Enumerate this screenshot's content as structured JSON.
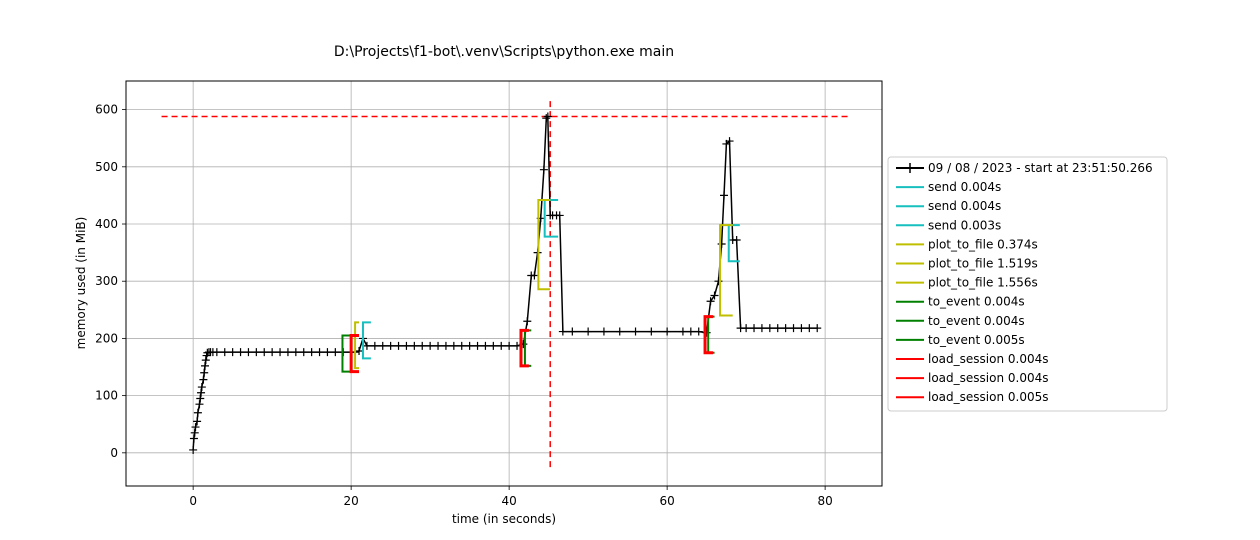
{
  "chart_data": {
    "type": "line",
    "title": "D:\\Projects\\f1-bot\\.venv\\Scripts\\python.exe main",
    "xlabel": "time (in seconds)",
    "ylabel": "memory used (in MiB)",
    "xlim": [
      -8.5,
      87.2
    ],
    "ylim": [
      -58,
      650
    ],
    "xticks": [
      0,
      20,
      40,
      60,
      80
    ],
    "yticks": [
      0,
      100,
      200,
      300,
      400,
      500,
      600
    ],
    "grid": true,
    "legend_position": "center-right, outside plot",
    "colors": {
      "memory": "#000000",
      "send": "#17bfbf",
      "plot_to_file": "#bfbf00",
      "to_event": "#008000",
      "load_session": "#ff0000",
      "peak": "#ff0000"
    },
    "series": [
      {
        "name": "09 / 08 / 2023 - start at 23:51:50.266",
        "x": [
          0.0,
          0.1,
          0.2,
          0.3,
          0.5,
          0.6,
          0.8,
          0.9,
          1.0,
          1.1,
          1.3,
          1.4,
          1.5,
          1.6,
          1.7,
          1.8,
          2.0,
          2.2,
          2.5,
          3,
          4,
          5,
          6,
          7,
          8,
          9,
          10,
          11,
          12,
          13,
          14,
          15,
          16,
          17,
          18,
          19,
          20,
          20.5,
          21.0,
          21.5,
          22.0,
          23,
          24,
          25,
          26,
          27,
          28,
          29,
          30,
          31,
          32,
          33,
          34,
          35,
          36,
          37,
          38,
          39,
          40,
          41,
          41.8,
          42.3,
          42.8,
          43.2,
          43.6,
          44.0,
          44.4,
          44.7,
          44.9,
          45.2,
          45.5,
          46.0,
          46.4,
          46.8,
          48,
          50,
          52,
          54,
          56,
          58,
          60,
          62,
          63,
          64,
          65,
          65.5,
          66.0,
          66.5,
          66.9,
          67.2,
          67.5,
          67.9,
          68.3,
          68.8,
          69.3,
          70,
          71,
          72,
          73,
          74,
          75,
          76,
          77,
          78,
          79
        ],
        "y": [
          5,
          25,
          35,
          45,
          55,
          70,
          85,
          95,
          105,
          115,
          128,
          140,
          152,
          162,
          170,
          175,
          176,
          176,
          176,
          176,
          176,
          176,
          176,
          176,
          176,
          176,
          176,
          176,
          176,
          176,
          176,
          176,
          176,
          176,
          176,
          176,
          176,
          176,
          178,
          200,
          187,
          187,
          187,
          187,
          187,
          187,
          187,
          187,
          187,
          187,
          187,
          187,
          187,
          187,
          187,
          187,
          187,
          187,
          187,
          187,
          190,
          230,
          310,
          310,
          350,
          410,
          495,
          585,
          588,
          415,
          415,
          415,
          415,
          212,
          212,
          212,
          212,
          212,
          212,
          212,
          212,
          212,
          212,
          212,
          210,
          265,
          275,
          300,
          365,
          450,
          540,
          545,
          372,
          372,
          218,
          218,
          218,
          218,
          218,
          218,
          218,
          218,
          218,
          218,
          218
        ]
      }
    ],
    "brackets": [
      {
        "name": "send 0.004s",
        "group": "send",
        "start": 21.5,
        "end": 22.5,
        "y0": 165,
        "y1": 228
      },
      {
        "name": "send 0.004s",
        "group": "send",
        "start": 44.5,
        "end": 46.2,
        "y0": 378,
        "y1": 442
      },
      {
        "name": "send 0.003s",
        "group": "send",
        "start": 67.8,
        "end": 69.2,
        "y0": 335,
        "y1": 398
      },
      {
        "name": "plot_to_file 0.374s",
        "group": "plot_to_file",
        "start": 20.5,
        "end": 21.0,
        "y0": 148,
        "y1": 228
      },
      {
        "name": "plot_to_file 1.519s",
        "group": "plot_to_file",
        "start": 43.7,
        "end": 45.2,
        "y0": 286,
        "y1": 442
      },
      {
        "name": "plot_to_file 1.556s",
        "group": "plot_to_file",
        "start": 66.7,
        "end": 68.3,
        "y0": 240,
        "y1": 398
      },
      {
        "name": "to_event 0.004s",
        "group": "to_event",
        "start": 18.9,
        "end": 20.6,
        "y0": 142,
        "y1": 205
      },
      {
        "name": "to_event 0.004s",
        "group": "to_event",
        "start": 42.0,
        "end": 42.8,
        "y0": 152,
        "y1": 214
      },
      {
        "name": "to_event 0.005s",
        "group": "to_event",
        "start": 65.2,
        "end": 66.0,
        "y0": 175,
        "y1": 238
      },
      {
        "name": "load_session 0.004s",
        "group": "load_session",
        "start": 20.0,
        "end": 21.0,
        "y0": 142,
        "y1": 205
      },
      {
        "name": "load_session 0.004s",
        "group": "load_session",
        "start": 41.5,
        "end": 42.5,
        "y0": 152,
        "y1": 214
      },
      {
        "name": "load_session 0.005s",
        "group": "load_session",
        "start": 64.8,
        "end": 65.8,
        "y0": 175,
        "y1": 238
      }
    ],
    "reference_lines": [
      {
        "orientation": "horizontal",
        "y": 588,
        "x_range": [
          -4,
          83
        ],
        "style": "dashed",
        "group": "peak"
      },
      {
        "orientation": "vertical",
        "x": 45.2,
        "y_range": [
          -25,
          615
        ],
        "style": "dashed",
        "group": "peak"
      }
    ],
    "legend": [
      {
        "label": "09 / 08 / 2023 - start at 23:51:50.266",
        "group": "memory",
        "marker": "+"
      },
      {
        "label": "send 0.004s",
        "group": "send"
      },
      {
        "label": "send 0.004s",
        "group": "send"
      },
      {
        "label": "send 0.003s",
        "group": "send"
      },
      {
        "label": "plot_to_file 0.374s",
        "group": "plot_to_file"
      },
      {
        "label": "plot_to_file 1.519s",
        "group": "plot_to_file"
      },
      {
        "label": "plot_to_file 1.556s",
        "group": "plot_to_file"
      },
      {
        "label": "to_event 0.004s",
        "group": "to_event"
      },
      {
        "label": "to_event 0.004s",
        "group": "to_event"
      },
      {
        "label": "to_event 0.005s",
        "group": "to_event"
      },
      {
        "label": "load_session 0.004s",
        "group": "load_session"
      },
      {
        "label": "load_session 0.004s",
        "group": "load_session"
      },
      {
        "label": "load_session 0.005s",
        "group": "load_session"
      }
    ]
  }
}
